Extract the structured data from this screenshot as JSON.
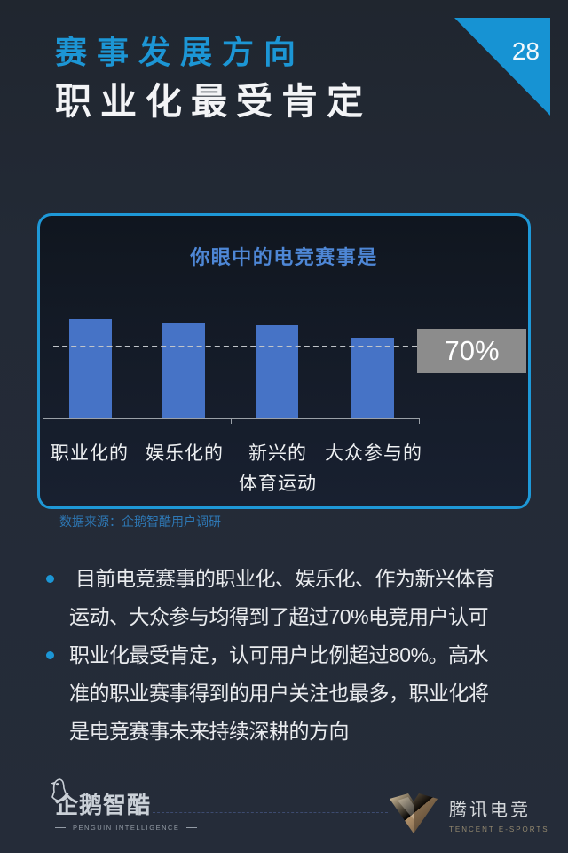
{
  "page": {
    "number": "28"
  },
  "header": {
    "title": "赛事发展方向",
    "subtitle": "职业化最受肯定"
  },
  "chart_card": {
    "source": "数据来源：企鹅智酷用户调研"
  },
  "chart_data": {
    "type": "bar",
    "title": "你眼中的电竞赛事是",
    "categories": [
      "职业化的",
      "娱乐化的",
      "新兴的\n体育运动",
      "大众参与的"
    ],
    "values": [
      96,
      92,
      90,
      78
    ],
    "ylim": [
      0,
      100
    ],
    "reference_line": 70,
    "reference_label": "70%",
    "bar_color": "#4673c6",
    "legend": "none",
    "grid": "off"
  },
  "bullets": [
    "目前电竞赛事的职业化、娱乐化、作为新兴体育\n运动、大众参与均得到了超过70%电竞用户认可",
    "职业化最受肯定，认可用户比例超过80%。高水\n准的职业赛事得到的用户关注也最多，职业化将\n是电竞赛事未来持续深耕的方向"
  ],
  "footer": {
    "left_logo": {
      "icon": "penguin-icon",
      "name": "企鹅智酷",
      "tagline": "PENGUIN INTELLIGENCE"
    },
    "right_logo": {
      "icon": "v-emblem-icon",
      "name": "腾讯电竞",
      "tagline": "TENCENT  E-SPORTS"
    }
  },
  "colors": {
    "accent_blue": "#1c96d5",
    "card_border": "#1e98d7",
    "bar_blue": "#4673c6",
    "reference_box_gray": "#8c8c8c",
    "chart_title_blue": "#4e87d6",
    "source_blue": "#2e78b5",
    "background": "#232a36",
    "bronze": "#b99a70"
  }
}
